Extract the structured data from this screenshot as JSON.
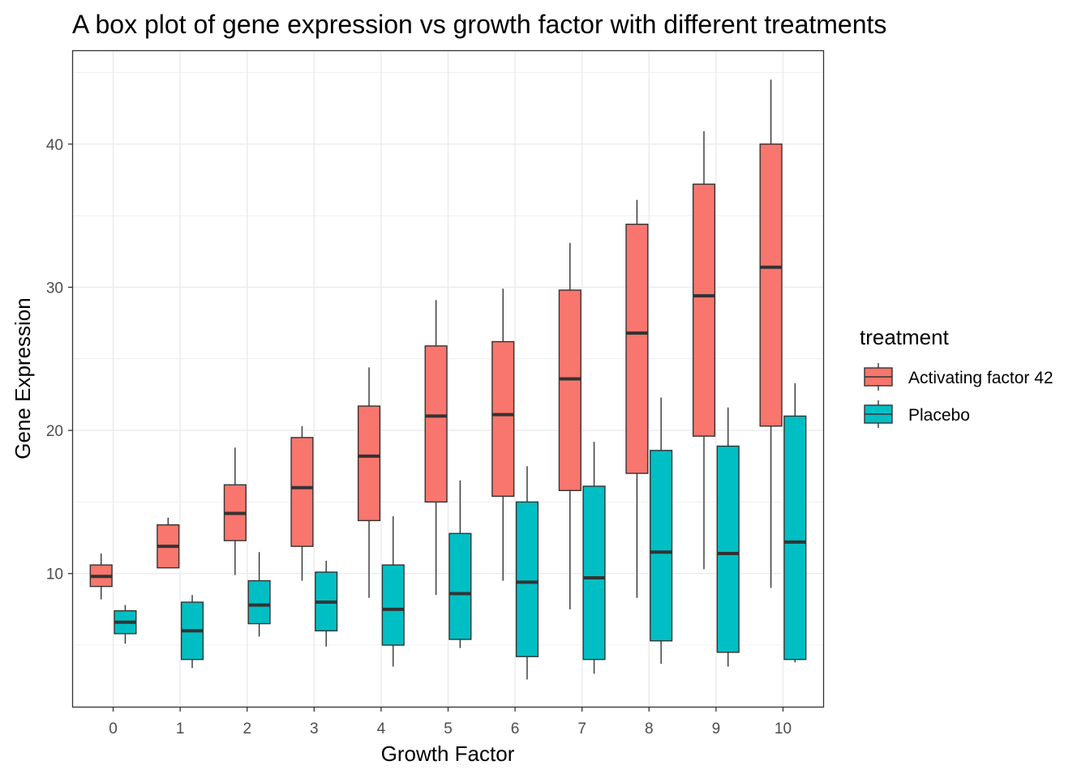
{
  "chart_data": {
    "type": "box",
    "title": "A box plot of gene expression vs growth factor with different treatments",
    "xlabel": "Growth Factor",
    "ylabel": "Gene Expression",
    "categories": [
      "0",
      "1",
      "2",
      "3",
      "4",
      "5",
      "6",
      "7",
      "8",
      "9",
      "10"
    ],
    "ylim": [
      0.7,
      46.5
    ],
    "yticks": [
      10,
      20,
      30,
      40
    ],
    "grid": true,
    "legend": {
      "title": "treatment",
      "placement": "right"
    },
    "series": [
      {
        "name": "Activating factor 42",
        "color": "#F8766D",
        "boxes": [
          {
            "min": 8.2,
            "q1": 9.1,
            "median": 9.8,
            "q3": 10.6,
            "max": 11.4
          },
          {
            "min": 10.4,
            "q1": 10.4,
            "median": 11.9,
            "q3": 13.4,
            "max": 13.9
          },
          {
            "min": 9.9,
            "q1": 12.3,
            "median": 14.2,
            "q3": 16.2,
            "max": 18.8
          },
          {
            "min": 9.5,
            "q1": 11.9,
            "median": 16.0,
            "q3": 19.5,
            "max": 20.3
          },
          {
            "min": 8.3,
            "q1": 13.7,
            "median": 18.2,
            "q3": 21.7,
            "max": 24.4
          },
          {
            "min": 8.5,
            "q1": 15.0,
            "median": 21.0,
            "q3": 25.9,
            "max": 29.1
          },
          {
            "min": 9.5,
            "q1": 15.4,
            "median": 21.1,
            "q3": 26.2,
            "max": 29.9
          },
          {
            "min": 7.5,
            "q1": 15.8,
            "median": 23.6,
            "q3": 29.8,
            "max": 33.1
          },
          {
            "min": 8.3,
            "q1": 17.0,
            "median": 26.8,
            "q3": 34.4,
            "max": 36.1
          },
          {
            "min": 10.3,
            "q1": 19.6,
            "median": 29.4,
            "q3": 37.2,
            "max": 40.9
          },
          {
            "min": 9.0,
            "q1": 20.3,
            "median": 31.4,
            "q3": 40.0,
            "max": 44.5
          }
        ]
      },
      {
        "name": "Placebo",
        "color": "#00BFC4",
        "boxes": [
          {
            "min": 5.1,
            "q1": 5.8,
            "median": 6.6,
            "q3": 7.4,
            "max": 7.8
          },
          {
            "min": 3.4,
            "q1": 4.0,
            "median": 6.0,
            "q3": 8.0,
            "max": 8.5
          },
          {
            "min": 5.6,
            "q1": 6.5,
            "median": 7.8,
            "q3": 9.5,
            "max": 11.5
          },
          {
            "min": 4.9,
            "q1": 6.0,
            "median": 8.0,
            "q3": 10.1,
            "max": 10.9
          },
          {
            "min": 3.5,
            "q1": 5.0,
            "median": 7.5,
            "q3": 10.6,
            "max": 14.0
          },
          {
            "min": 4.8,
            "q1": 5.4,
            "median": 8.6,
            "q3": 12.8,
            "max": 16.5
          },
          {
            "min": 2.6,
            "q1": 4.2,
            "median": 9.4,
            "q3": 15.0,
            "max": 17.5
          },
          {
            "min": 3.0,
            "q1": 4.0,
            "median": 9.7,
            "q3": 16.1,
            "max": 19.2
          },
          {
            "min": 3.7,
            "q1": 5.3,
            "median": 11.5,
            "q3": 18.6,
            "max": 22.3
          },
          {
            "min": 3.5,
            "q1": 4.5,
            "median": 11.4,
            "q3": 18.9,
            "max": 21.6
          },
          {
            "min": 3.8,
            "q1": 4.0,
            "median": 12.2,
            "q3": 21.0,
            "max": 23.3
          }
        ]
      }
    ]
  }
}
